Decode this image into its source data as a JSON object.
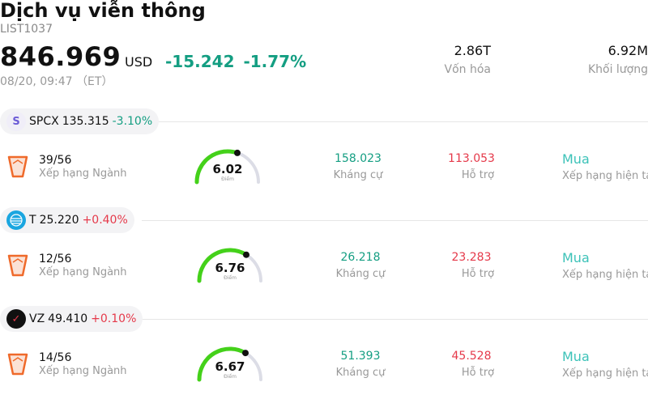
{
  "header": {
    "title": "Dịch vụ viễn thông",
    "code": "LIST1037",
    "price": "846.969",
    "currency": "USD",
    "change": "-15.242",
    "change_pct": "-1.77%",
    "time": "08/20, 09:47 （ET）",
    "market_cap_value": "2.86T",
    "market_cap_label": "Vốn hóa",
    "volume_value": "6.92M",
    "volume_label": "Khối lượng"
  },
  "colors": {
    "up_red": "#e5394a",
    "down_green": "#149e82",
    "rating": "#3cc2b8",
    "gauge": "#44d11a"
  },
  "stocks": [
    {
      "ticker": "SPCX",
      "price": "135.315",
      "pct": "-3.10%",
      "pct_dir": "down",
      "logo_icon": "spcx-logo-icon",
      "logo_text": "S",
      "rank": "39/56",
      "rank_label": "Xếp hạng Ngành",
      "score": "6.02",
      "score_label": "Điểm",
      "score_fraction": 0.602,
      "resistance": "158.023",
      "resistance_label": "Kháng cự",
      "support": "113.053",
      "support_label": "Hỗ trợ",
      "rating": "Mua",
      "rating_label": "Xếp hạng hiện tại"
    },
    {
      "ticker": "T",
      "price": "25.220",
      "pct": "+0.40%",
      "pct_dir": "up",
      "logo_icon": "att-logo-icon",
      "logo_text": "",
      "rank": "12/56",
      "rank_label": "Xếp hạng Ngành",
      "score": "6.76",
      "score_label": "Điểm",
      "score_fraction": 0.676,
      "resistance": "26.218",
      "resistance_label": "Kháng cự",
      "support": "23.283",
      "support_label": "Hỗ trợ",
      "rating": "Mua",
      "rating_label": "Xếp hạng hiện tại"
    },
    {
      "ticker": "VZ",
      "price": "49.410",
      "pct": "+0.10%",
      "pct_dir": "up",
      "logo_icon": "verizon-logo-icon",
      "logo_text": "✓",
      "rank": "14/56",
      "rank_label": "Xếp hạng Ngành",
      "score": "6.67",
      "score_label": "Điểm",
      "score_fraction": 0.667,
      "resistance": "51.393",
      "resistance_label": "Kháng cự",
      "support": "45.528",
      "support_label": "Hỗ trợ",
      "rating": "Mua",
      "rating_label": "Xếp hạng hiện tại"
    }
  ]
}
